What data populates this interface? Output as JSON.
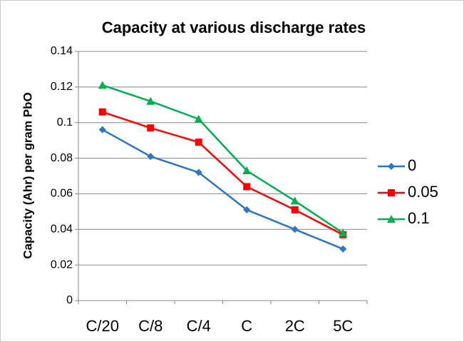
{
  "chart_data": {
    "type": "line",
    "title": "Capacity at various discharge rates",
    "y_label": "Capacity (Ahr) per gram PbO",
    "categories": [
      "C/20",
      "C/8",
      "C/4",
      "C",
      "2C",
      "5C"
    ],
    "series": [
      {
        "name": "0",
        "color": "#2e75c6",
        "marker": "diamond",
        "values": [
          0.096,
          0.081,
          0.072,
          0.051,
          0.04,
          0.029
        ]
      },
      {
        "name": "0.05",
        "color": "#ff0000",
        "marker": "square",
        "values": [
          0.106,
          0.097,
          0.089,
          0.064,
          0.051,
          0.037
        ]
      },
      {
        "name": "0.1",
        "color": "#00b050",
        "marker": "triangle",
        "values": [
          0.121,
          0.112,
          0.102,
          0.073,
          0.056,
          0.038
        ]
      }
    ],
    "ylim": [
      0,
      0.14
    ],
    "yticks": [
      0,
      0.02,
      0.04,
      0.06,
      0.08,
      0.1,
      0.12,
      0.14
    ],
    "grid": true,
    "legend": "right"
  }
}
